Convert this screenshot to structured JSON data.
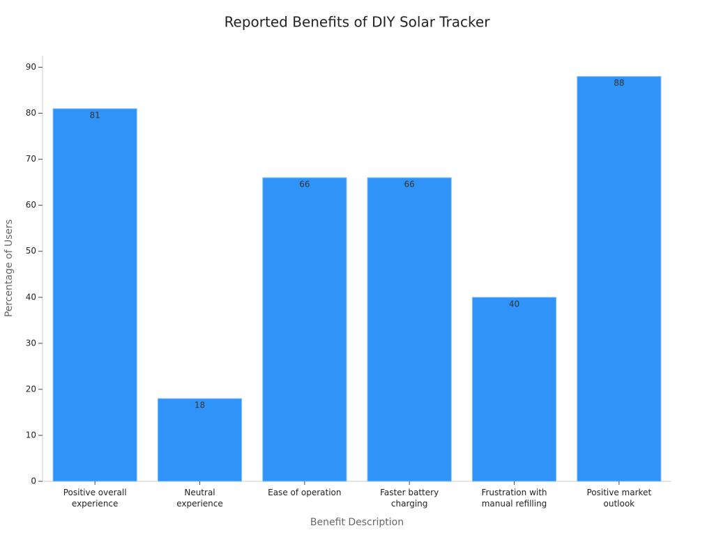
{
  "chart_data": {
    "type": "bar",
    "title": "Reported Benefits of DIY Solar Tracker",
    "x_label": "Benefit Description",
    "y_label": "Percentage of Users",
    "categories": [
      "Positive overall experience",
      "Neutral experience",
      "Ease of operation",
      "Faster battery charging",
      "Frustration with manual refilling",
      "Positive market outlook"
    ],
    "values": [
      81,
      18,
      66,
      66,
      40,
      88
    ],
    "color": "#3093f7",
    "ylim": [
      0,
      92.5
    ],
    "yticks": [
      0,
      10,
      20,
      30,
      40,
      50,
      60,
      70,
      80,
      90
    ],
    "grid": false
  }
}
